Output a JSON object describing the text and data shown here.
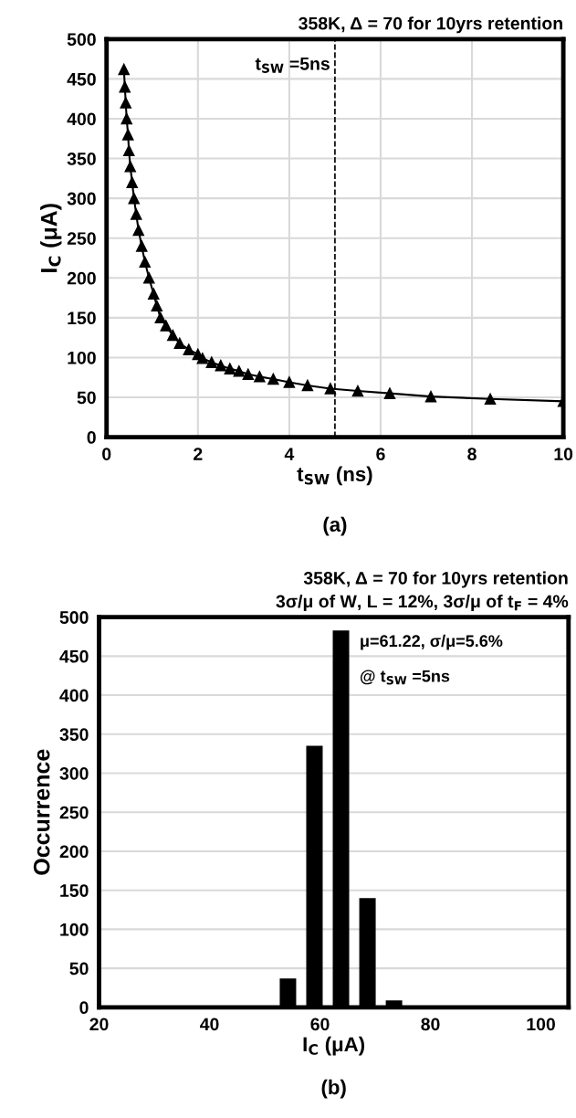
{
  "chart_data": [
    {
      "type": "line",
      "title": "358K, Δ = 70 for 10yrs retention",
      "xlabel": "t$_{SW}$ (ns)",
      "ylabel": "I$_{C}$ (μA)",
      "series": [
        {
          "color": "#000000",
          "x": [
            0.38,
            0.4,
            0.42,
            0.44,
            0.47,
            0.49,
            0.52,
            0.56,
            0.6,
            0.65,
            0.7,
            0.77,
            0.84,
            0.93,
            1.03,
            1.1,
            1.18,
            1.3,
            1.45,
            1.6,
            1.8,
            2.0,
            2.1,
            2.3,
            2.5,
            2.7,
            2.9,
            3.1,
            3.35,
            3.65,
            4.0,
            4.4,
            4.9,
            5.5,
            6.2,
            7.1,
            8.4,
            10
          ],
          "values": [
            462,
            440,
            420,
            400,
            380,
            360,
            340,
            320,
            300,
            280,
            260,
            240,
            220,
            200,
            180,
            165,
            150,
            140,
            128,
            118,
            110,
            104,
            99,
            94,
            90,
            86,
            83,
            79,
            76,
            73,
            69,
            65,
            61,
            58,
            55,
            51,
            48,
            45
          ]
        }
      ],
      "marker": "triangle",
      "line_style": "solid",
      "xlim": [
        0,
        10
      ],
      "xticks": [
        0,
        2,
        4,
        6,
        8,
        10
      ],
      "ylim": [
        0,
        500
      ],
      "yticks": [
        0,
        50,
        100,
        150,
        200,
        250,
        300,
        350,
        400,
        450,
        500
      ],
      "grid": true,
      "ref_lines": [
        {
          "axis": "x",
          "value": 5,
          "label": "t$_{SW}$ =5ns",
          "color": "#000000",
          "line_style": "dashed"
        }
      ],
      "annotations": [
        "(a)"
      ]
    },
    {
      "type": "histogram",
      "title": "358K, Δ = 70 for 10yrs retention",
      "subtitle": "3σ/μ of W, L = 12%, 3σ/μ of t$_{F}$ = 4%",
      "xlabel": "I$_{C}$ (μA)",
      "ylabel": "Occurrence",
      "bins": [
        51.8,
        56.6,
        61.4,
        66.2,
        71.0,
        75.8
      ],
      "values": [
        37,
        335,
        483,
        140,
        9
      ],
      "color": "#000000",
      "xlim": [
        20,
        105
      ],
      "xticks": [
        20,
        40,
        60,
        80,
        100
      ],
      "ylim": [
        0,
        500
      ],
      "yticks": [
        0,
        50,
        100,
        150,
        200,
        250,
        300,
        350,
        400,
        450,
        500
      ],
      "grid": "y",
      "annotations": [
        "μ=61.22, σ/μ=5.6%",
        "@ t$_{SW}$ =5ns",
        "(b)"
      ]
    }
  ]
}
